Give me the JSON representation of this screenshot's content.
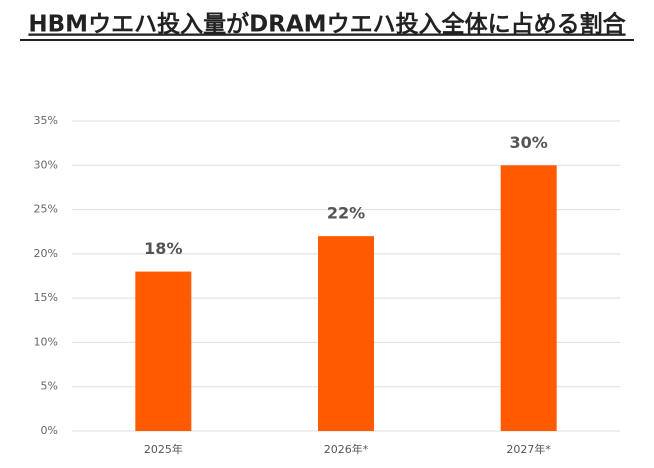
{
  "chart_data": {
    "type": "bar",
    "title": "HBMウエハ投入量がDRAMウエハ投入全体に占める割合",
    "categories": [
      "2025年",
      "2026年*",
      "2027年*"
    ],
    "values": [
      18,
      22,
      30
    ],
    "value_labels": [
      "18%",
      "22%",
      "30%"
    ],
    "color": "#ff5a00",
    "ylim": [
      0,
      35
    ],
    "yticks": [
      {
        "value": 0,
        "label": "0%"
      },
      {
        "value": 5,
        "label": "5%"
      },
      {
        "value": 10,
        "label": "10%"
      },
      {
        "value": 15,
        "label": "15%"
      },
      {
        "value": 20,
        "label": "20%"
      },
      {
        "value": 25,
        "label": "25%"
      },
      {
        "value": 30,
        "label": "30%"
      },
      {
        "value": 35,
        "label": "35%"
      }
    ],
    "grid": true
  }
}
